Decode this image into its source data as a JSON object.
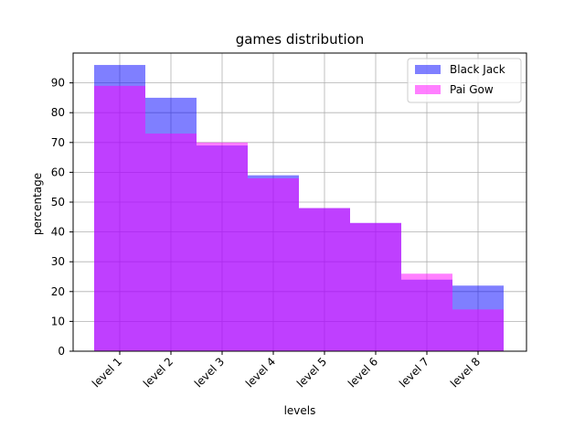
{
  "chart_data": {
    "type": "bar",
    "title": "games distribution",
    "xlabel": "levels",
    "ylabel": "percentage",
    "categories": [
      "level 1",
      "level 2",
      "level 3",
      "level 4",
      "level 5",
      "level 6",
      "level 7",
      "level 8"
    ],
    "series": [
      {
        "name": "Black Jack",
        "values": [
          96,
          85,
          69,
          59,
          48,
          43,
          24,
          22
        ],
        "color": "#0000ff",
        "alpha": 0.5
      },
      {
        "name": "Pai Gow",
        "values": [
          89,
          73,
          70,
          58,
          48,
          43,
          26,
          14
        ],
        "color": "#ff00ff",
        "alpha": 0.5
      }
    ],
    "ylim": [
      0,
      100
    ],
    "yticks": [
      0,
      10,
      20,
      30,
      40,
      50,
      60,
      70,
      80,
      90
    ],
    "grid": true,
    "legend_position": "top-right"
  }
}
